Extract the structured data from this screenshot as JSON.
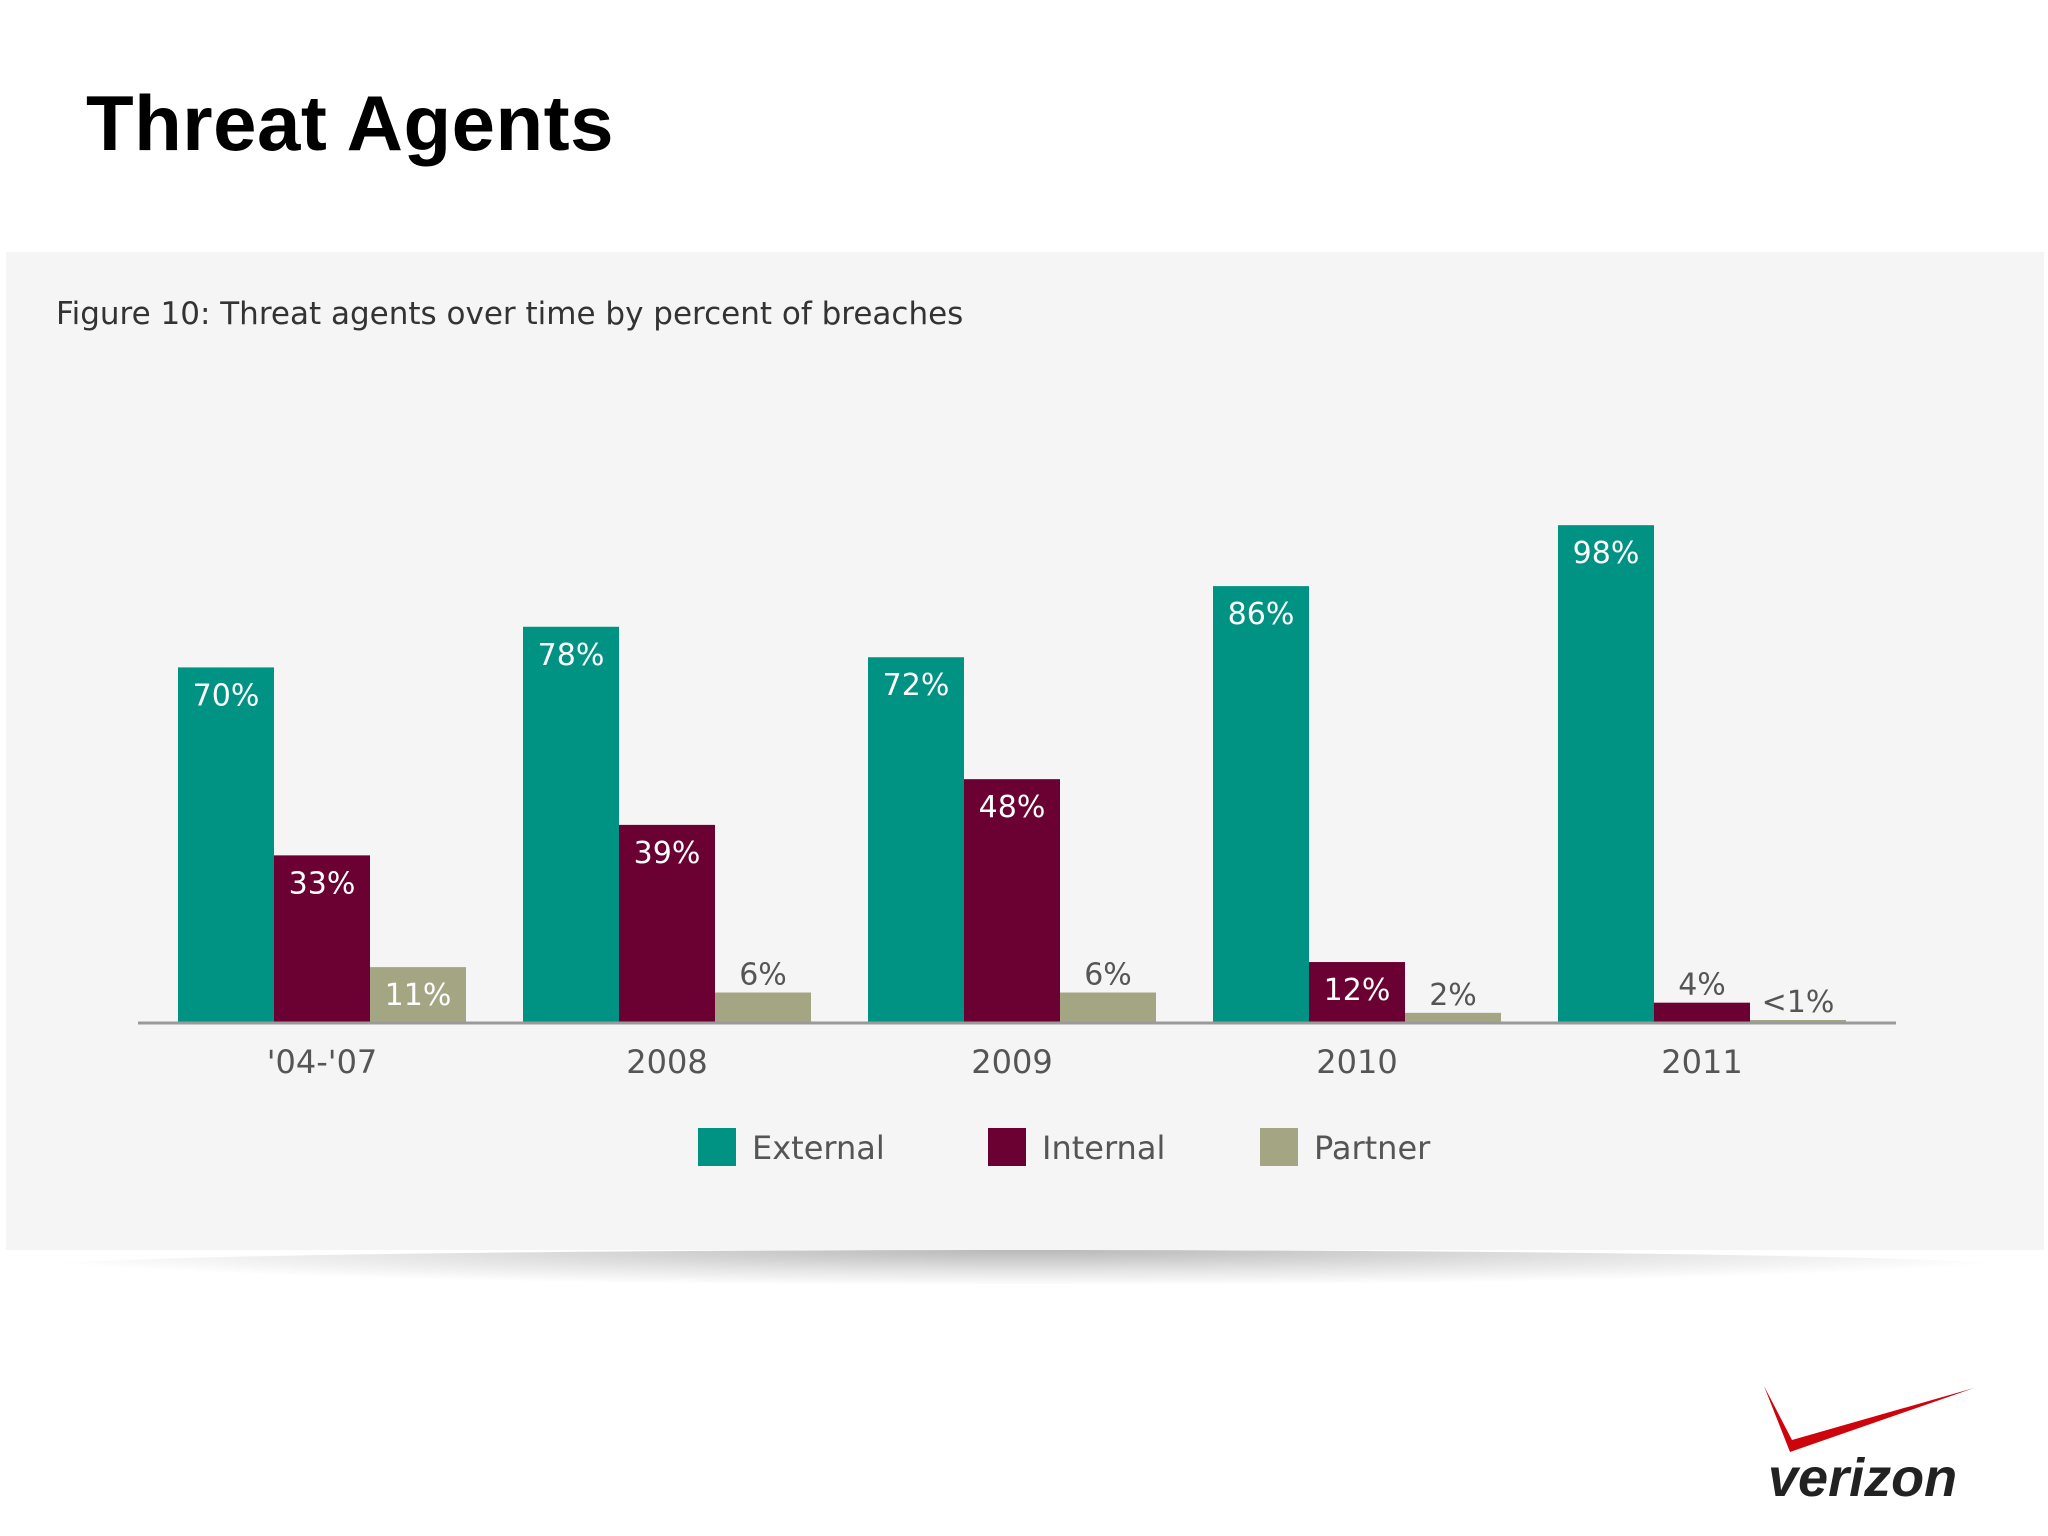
{
  "slide": {
    "title": "Threat Agents"
  },
  "figure": {
    "caption": "Figure 10: Threat agents over time by percent of breaches"
  },
  "logo": {
    "wordmark": "verizon",
    "accent_color": "#cd040b"
  },
  "chart_data": {
    "type": "bar",
    "title": "Figure 10: Threat agents over time by percent of breaches",
    "xlabel": "",
    "ylabel": "",
    "ylim": [
      0,
      100
    ],
    "grid": false,
    "legend_position": "bottom",
    "categories": [
      "'04-'07",
      "2008",
      "2009",
      "2010",
      "2011"
    ],
    "series": [
      {
        "name": "External",
        "color": "#009383",
        "values": [
          70,
          78,
          72,
          86,
          98
        ],
        "labels": [
          "70%",
          "78%",
          "72%",
          "86%",
          "98%"
        ]
      },
      {
        "name": "Internal",
        "color": "#6b0032",
        "values": [
          33,
          39,
          48,
          12,
          4
        ],
        "labels": [
          "33%",
          "39%",
          "48%",
          "12%",
          "4%"
        ]
      },
      {
        "name": "Partner",
        "color": "#a4a582",
        "values": [
          11,
          6,
          6,
          2,
          0.5
        ],
        "labels": [
          "11%",
          "6%",
          "6%",
          "2%",
          "<1%"
        ]
      }
    ]
  }
}
